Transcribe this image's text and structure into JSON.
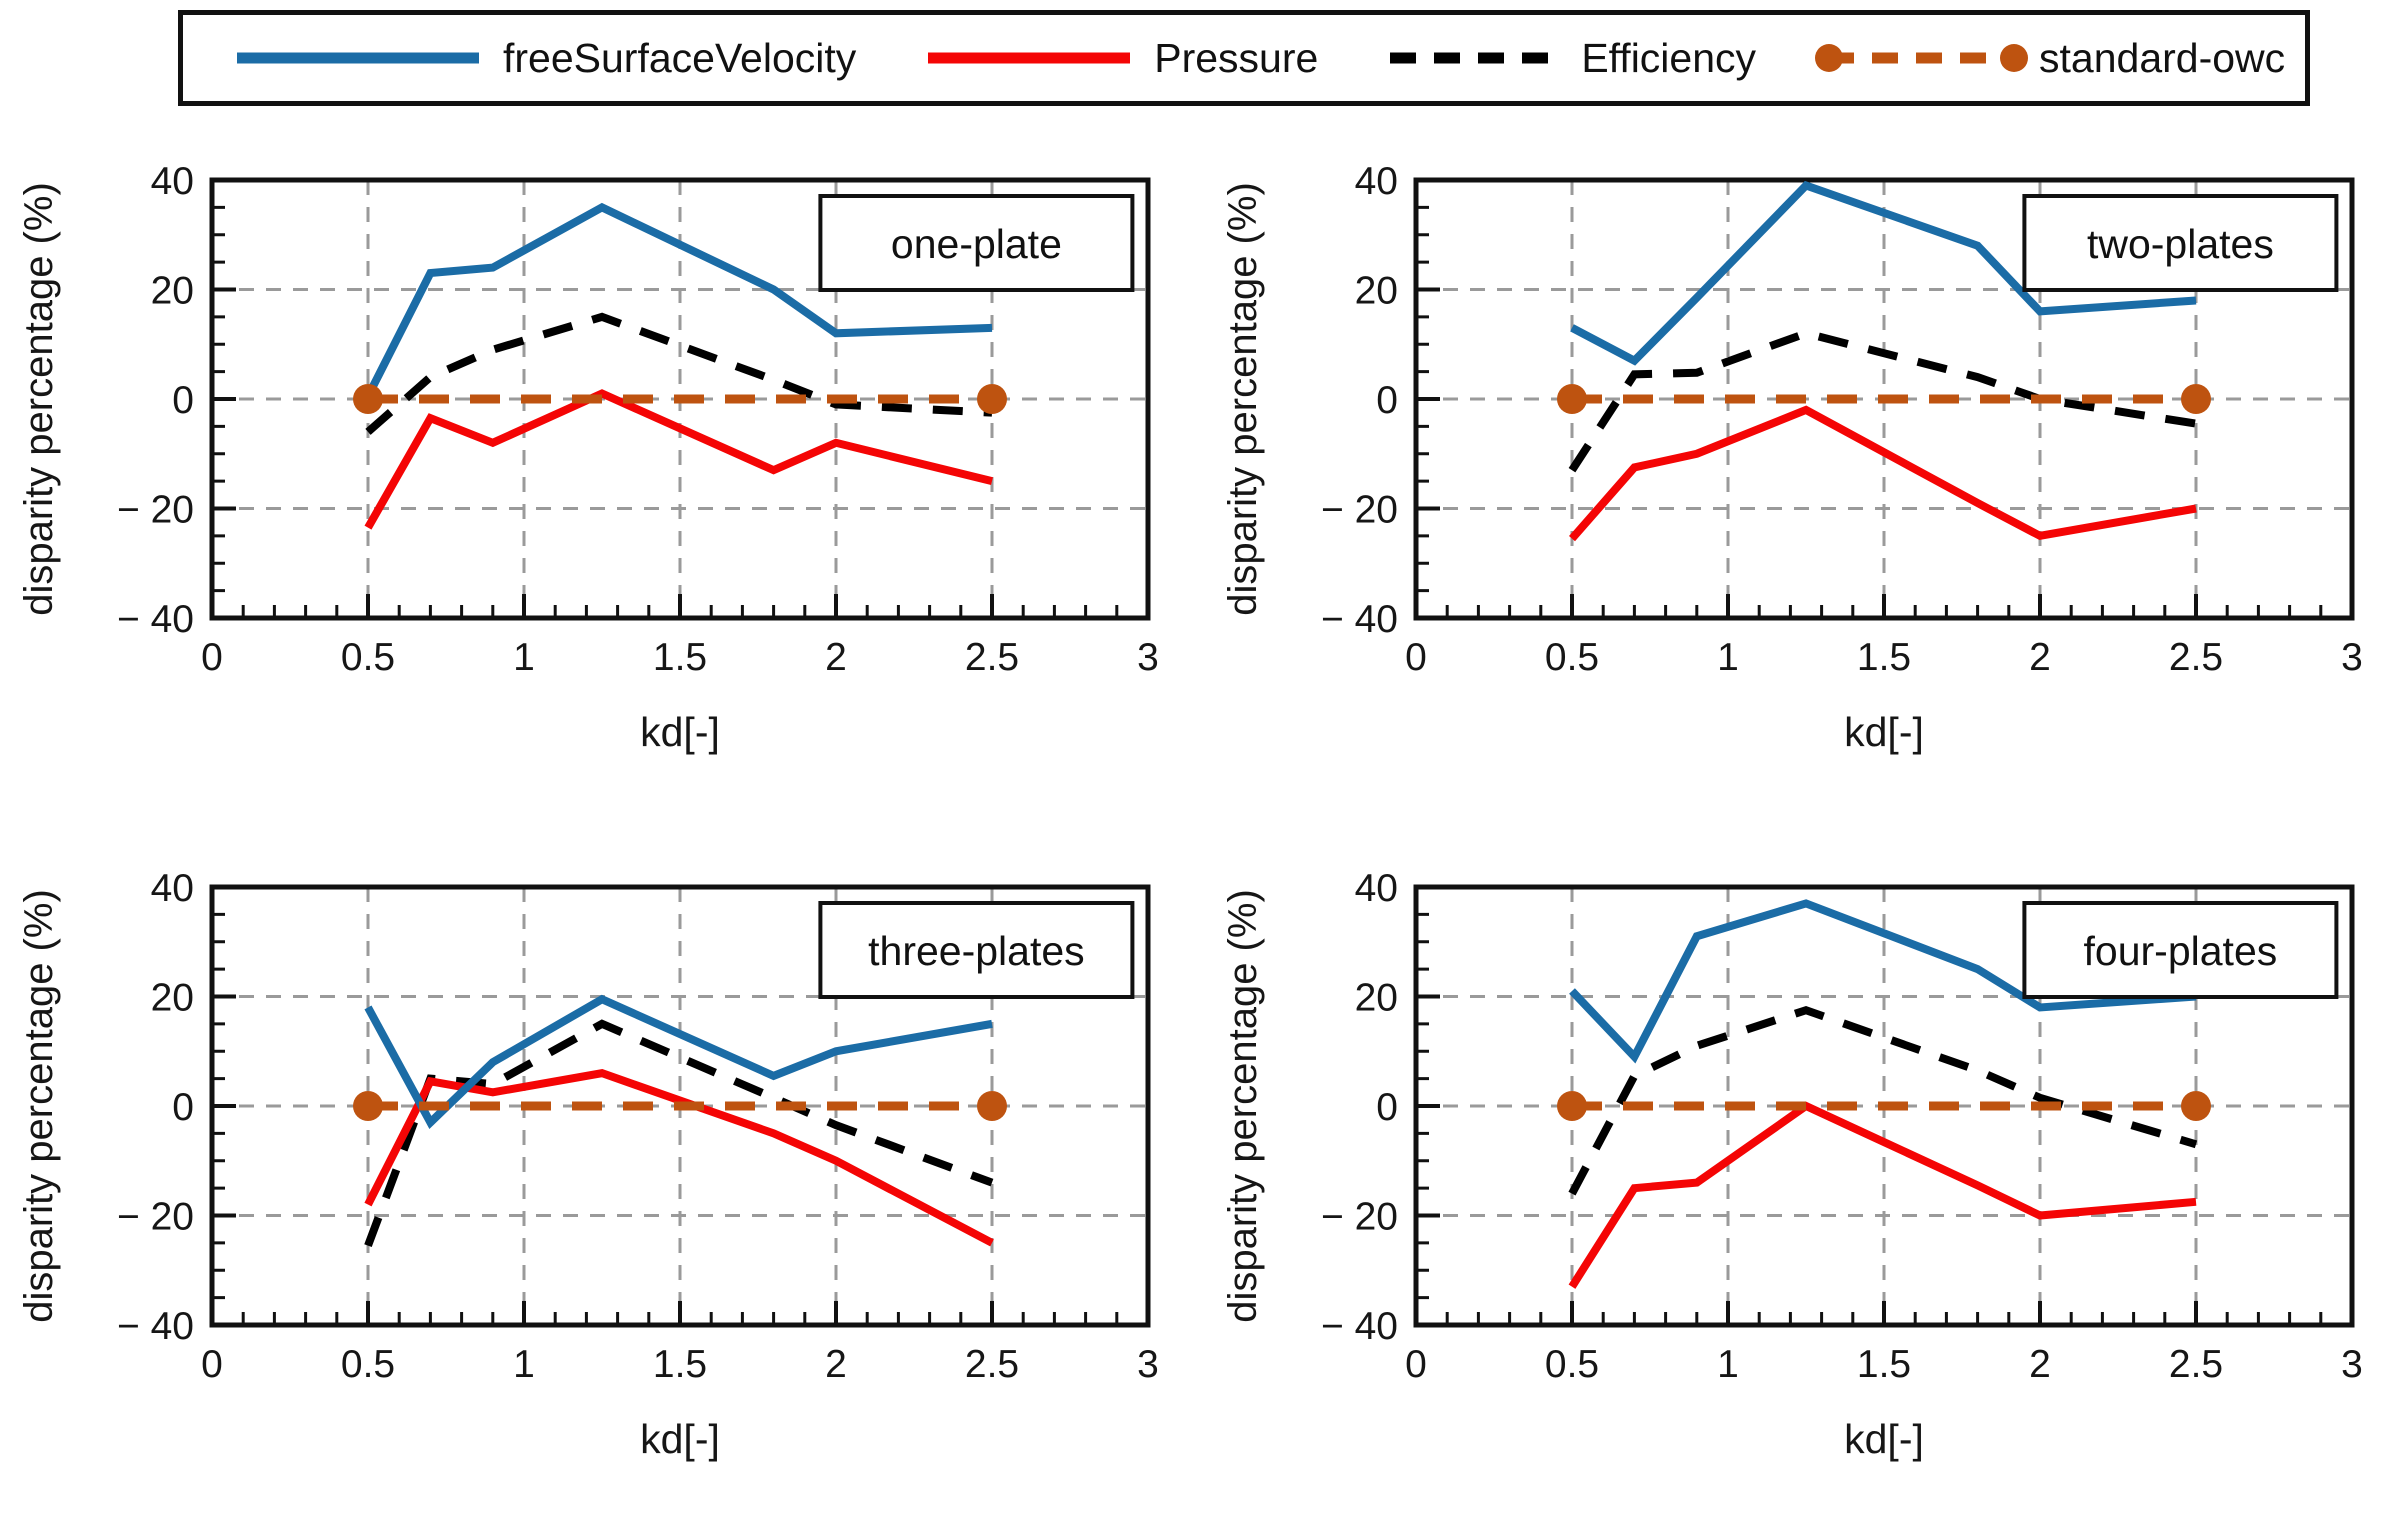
{
  "legend": {
    "items": [
      {
        "label": "freeSurfaceVelocity",
        "style": "solid",
        "color": "#1B6CA6",
        "sample_width": 270
      },
      {
        "label": "Pressure",
        "style": "solid",
        "color": "#F40505",
        "sample_width": 230
      },
      {
        "label": "Efficiency",
        "style": "dashed",
        "color": "#000000",
        "sample_width": 195
      },
      {
        "label": "standard-owc",
        "style": "dashed-markers",
        "color": "#BE5310",
        "sample_width": 215
      }
    ]
  },
  "colors": {
    "freeSurfaceVelocity": "#1B6CA6",
    "Pressure": "#F40505",
    "Efficiency": "#000000",
    "standard_owc": "#BE5310",
    "gridline": "#9A9A9A",
    "axis": "#111111"
  },
  "axes": {
    "x_label": "kd[-]",
    "y_label": "disparity percentage (%)",
    "x_range": [
      0,
      3
    ],
    "y_range": [
      -40,
      40
    ],
    "x_ticks": [
      {
        "v": 0,
        "label": "0"
      },
      {
        "v": 0.5,
        "label": "0.5"
      },
      {
        "v": 1,
        "label": "1"
      },
      {
        "v": 1.5,
        "label": "1.5"
      },
      {
        "v": 2,
        "label": "2"
      },
      {
        "v": 2.5,
        "label": "2.5"
      },
      {
        "v": 3,
        "label": "3"
      }
    ],
    "y_ticks": [
      {
        "v": 40,
        "label": "40"
      },
      {
        "v": 20,
        "label": "20"
      },
      {
        "v": 0,
        "label": "0"
      },
      {
        "v": -20,
        "label": "− 20"
      },
      {
        "v": -40,
        "label": "− 40"
      }
    ],
    "x_minor_step": 0.1,
    "y_minor_step": 5,
    "vertical_gridlines": [
      0.5,
      1,
      1.5,
      2,
      2.5
    ],
    "horizontal_gridlines": [
      -20,
      0,
      20
    ],
    "grid_on": true
  },
  "chart_data": [
    {
      "type": "line",
      "title": "one-plate",
      "xlabel": "kd[-]",
      "ylabel": "disparity percentage (%)",
      "xlim": [
        0,
        3
      ],
      "ylim": [
        -40,
        40
      ],
      "series": [
        {
          "name": "Efficiency",
          "color": "#000000",
          "style": "dashed",
          "width": 8,
          "points": [
            [
              0.5,
              -6
            ],
            [
              0.7,
              4
            ],
            [
              0.9,
              9
            ],
            [
              1.25,
              15
            ],
            [
              1.8,
              3.5
            ],
            [
              2,
              -1
            ],
            [
              2.5,
              -2.5
            ]
          ]
        },
        {
          "name": "Pressure",
          "color": "#F40505",
          "style": "solid",
          "width": 8,
          "points": [
            [
              0.5,
              -23.5
            ],
            [
              0.7,
              -3.5
            ],
            [
              0.9,
              -8
            ],
            [
              1.25,
              1
            ],
            [
              1.8,
              -13
            ],
            [
              2,
              -8
            ],
            [
              2.5,
              -15
            ]
          ]
        },
        {
          "name": "freeSurfaceVelocity",
          "color": "#1B6CA6",
          "style": "solid",
          "width": 8,
          "points": [
            [
              0.5,
              0.5
            ],
            [
              0.7,
              23
            ],
            [
              0.9,
              24
            ],
            [
              1.25,
              35
            ],
            [
              1.8,
              20
            ],
            [
              2,
              12
            ],
            [
              2.5,
              13
            ]
          ]
        },
        {
          "name": "standard-owc",
          "color": "#BE5310",
          "style": "dashed-markers",
          "width": 9,
          "points": [
            [
              0.5,
              0
            ],
            [
              2.5,
              0
            ]
          ]
        }
      ]
    },
    {
      "type": "line",
      "title": "two-plates",
      "xlabel": "kd[-]",
      "ylabel": "disparity percentage (%)",
      "xlim": [
        0,
        3
      ],
      "ylim": [
        -40,
        40
      ],
      "series": [
        {
          "name": "Efficiency",
          "color": "#000000",
          "style": "dashed",
          "width": 8,
          "points": [
            [
              0.5,
              -13
            ],
            [
              0.7,
              4.5
            ],
            [
              0.9,
              4.8
            ],
            [
              1.25,
              12
            ],
            [
              1.8,
              4
            ],
            [
              2,
              0
            ],
            [
              2.5,
              -4.5
            ]
          ]
        },
        {
          "name": "Pressure",
          "color": "#F40505",
          "style": "solid",
          "width": 8,
          "points": [
            [
              0.5,
              -25.5
            ],
            [
              0.7,
              -12.5
            ],
            [
              0.9,
              -10
            ],
            [
              1.25,
              -2
            ],
            [
              1.8,
              -19
            ],
            [
              2,
              -25
            ],
            [
              2.5,
              -20
            ]
          ]
        },
        {
          "name": "freeSurfaceVelocity",
          "color": "#1B6CA6",
          "style": "solid",
          "width": 8,
          "points": [
            [
              0.5,
              13
            ],
            [
              0.7,
              7
            ],
            [
              0.9,
              18.5
            ],
            [
              1.25,
              39
            ],
            [
              1.8,
              28
            ],
            [
              2,
              16
            ],
            [
              2.5,
              18
            ]
          ]
        },
        {
          "name": "standard-owc",
          "color": "#BE5310",
          "style": "dashed-markers",
          "width": 9,
          "points": [
            [
              0.5,
              0
            ],
            [
              2.5,
              0
            ]
          ]
        }
      ]
    },
    {
      "type": "line",
      "title": "three-plates",
      "xlabel": "kd[-]",
      "ylabel": "disparity percentage (%)",
      "xlim": [
        0,
        3
      ],
      "ylim": [
        -40,
        40
      ],
      "series": [
        {
          "name": "Efficiency",
          "color": "#000000",
          "style": "dashed",
          "width": 8,
          "points": [
            [
              0.5,
              -25.5
            ],
            [
              0.7,
              5
            ],
            [
              0.9,
              4
            ],
            [
              1.25,
              15
            ],
            [
              1.8,
              1.5
            ],
            [
              2,
              -3.5
            ],
            [
              2.5,
              -14
            ]
          ]
        },
        {
          "name": "Pressure",
          "color": "#F40505",
          "style": "solid",
          "width": 8,
          "points": [
            [
              0.5,
              -18
            ],
            [
              0.7,
              4.5
            ],
            [
              0.9,
              2.5
            ],
            [
              1.25,
              6
            ],
            [
              1.8,
              -5
            ],
            [
              2,
              -10
            ],
            [
              2.5,
              -25
            ]
          ]
        },
        {
          "name": "freeSurfaceVelocity",
          "color": "#1B6CA6",
          "style": "solid",
          "width": 8,
          "points": [
            [
              0.5,
              18
            ],
            [
              0.7,
              -3
            ],
            [
              0.9,
              8
            ],
            [
              1.25,
              19.5
            ],
            [
              1.8,
              5.5
            ],
            [
              2,
              10
            ],
            [
              2.5,
              15
            ]
          ]
        },
        {
          "name": "standard-owc",
          "color": "#BE5310",
          "style": "dashed-markers",
          "width": 9,
          "points": [
            [
              0.5,
              0
            ],
            [
              2.5,
              0
            ]
          ]
        }
      ]
    },
    {
      "type": "line",
      "title": "four-plates",
      "xlabel": "kd[-]",
      "ylabel": "disparity percentage (%)",
      "xlim": [
        0,
        3
      ],
      "ylim": [
        -40,
        40
      ],
      "series": [
        {
          "name": "Efficiency",
          "color": "#000000",
          "style": "dashed",
          "width": 8,
          "points": [
            [
              0.5,
              -16
            ],
            [
              0.7,
              5.5
            ],
            [
              0.9,
              11
            ],
            [
              1.25,
              17.5
            ],
            [
              1.8,
              6.5
            ],
            [
              2,
              1.5
            ],
            [
              2.5,
              -7
            ]
          ]
        },
        {
          "name": "Pressure",
          "color": "#F40505",
          "style": "solid",
          "width": 8,
          "points": [
            [
              0.5,
              -33
            ],
            [
              0.7,
              -15
            ],
            [
              0.9,
              -14
            ],
            [
              1.25,
              0
            ],
            [
              1.8,
              -14.5
            ],
            [
              2,
              -20
            ],
            [
              2.5,
              -17.5
            ]
          ]
        },
        {
          "name": "freeSurfaceVelocity",
          "color": "#1B6CA6",
          "style": "solid",
          "width": 8,
          "points": [
            [
              0.5,
              21
            ],
            [
              0.7,
              9
            ],
            [
              0.9,
              31
            ],
            [
              1.25,
              37
            ],
            [
              1.8,
              25
            ],
            [
              2,
              18
            ],
            [
              2.5,
              20
            ]
          ]
        },
        {
          "name": "standard-owc",
          "color": "#BE5310",
          "style": "dashed-markers",
          "width": 9,
          "points": [
            [
              0.5,
              0
            ],
            [
              2.5,
              0
            ]
          ]
        }
      ]
    }
  ]
}
